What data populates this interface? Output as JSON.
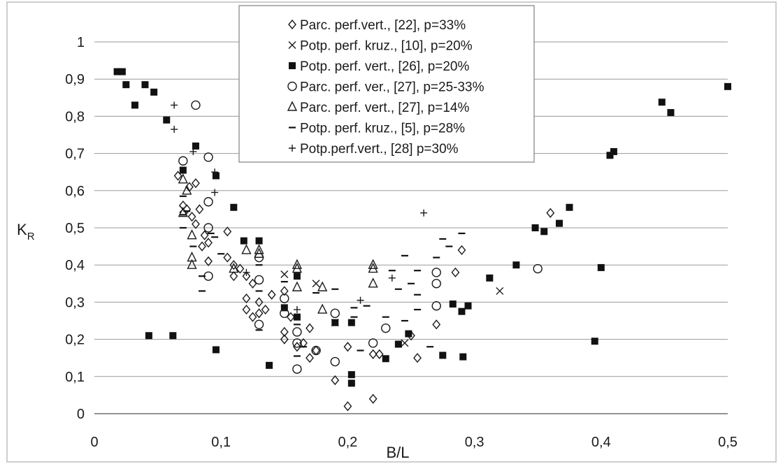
{
  "chart_data": {
    "type": "scatter",
    "title": "",
    "xlabel": "B/L",
    "ylabel": "K",
    "ylabel_subscript": "R",
    "xlim": [
      0,
      0.5
    ],
    "ylim": [
      0,
      1
    ],
    "xticks": [
      0,
      0.1,
      0.2,
      0.3,
      0.4,
      0.5
    ],
    "xtick_labels": [
      "0",
      "0,1",
      "0,2",
      "0,3",
      "0,4",
      "0,5"
    ],
    "yticks": [
      0,
      0.1,
      0.2,
      0.3,
      0.4,
      0.5,
      0.6,
      0.7,
      0.8,
      0.9,
      1
    ],
    "ytick_labels": [
      "0",
      "0,1",
      "0,2",
      "0,3",
      "0,4",
      "0,5",
      "0,6",
      "0,7",
      "0,8",
      "0,9",
      "1"
    ],
    "grid": "horizontal",
    "legend_position": "top-center",
    "series": [
      {
        "name": "Parc. perf.vert., [22], p=33%",
        "marker": "diamond-open",
        "points": [
          [
            0.066,
            0.64
          ],
          [
            0.07,
            0.56
          ],
          [
            0.073,
            0.55
          ],
          [
            0.075,
            0.61
          ],
          [
            0.077,
            0.53
          ],
          [
            0.08,
            0.62
          ],
          [
            0.08,
            0.51
          ],
          [
            0.083,
            0.55
          ],
          [
            0.085,
            0.45
          ],
          [
            0.087,
            0.48
          ],
          [
            0.09,
            0.46
          ],
          [
            0.09,
            0.41
          ],
          [
            0.105,
            0.49
          ],
          [
            0.105,
            0.42
          ],
          [
            0.11,
            0.4
          ],
          [
            0.11,
            0.37
          ],
          [
            0.115,
            0.39
          ],
          [
            0.12,
            0.37
          ],
          [
            0.12,
            0.31
          ],
          [
            0.12,
            0.28
          ],
          [
            0.125,
            0.35
          ],
          [
            0.125,
            0.26
          ],
          [
            0.13,
            0.3
          ],
          [
            0.13,
            0.27
          ],
          [
            0.135,
            0.28
          ],
          [
            0.14,
            0.32
          ],
          [
            0.15,
            0.33
          ],
          [
            0.15,
            0.22
          ],
          [
            0.15,
            0.2
          ],
          [
            0.155,
            0.26
          ],
          [
            0.16,
            0.18
          ],
          [
            0.165,
            0.19
          ],
          [
            0.17,
            0.23
          ],
          [
            0.17,
            0.15
          ],
          [
            0.175,
            0.17
          ],
          [
            0.19,
            0.09
          ],
          [
            0.2,
            0.18
          ],
          [
            0.2,
            0.02
          ],
          [
            0.22,
            0.16
          ],
          [
            0.22,
            0.04
          ],
          [
            0.225,
            0.16
          ],
          [
            0.25,
            0.21
          ],
          [
            0.255,
            0.15
          ],
          [
            0.27,
            0.24
          ],
          [
            0.285,
            0.38
          ],
          [
            0.29,
            0.44
          ],
          [
            0.36,
            0.54
          ]
        ]
      },
      {
        "name": "Potp. perf. kruz., [10], p=20%",
        "marker": "x",
        "points": [
          [
            0.07,
            0.55
          ],
          [
            0.15,
            0.375
          ],
          [
            0.175,
            0.35
          ],
          [
            0.19,
            0.245
          ],
          [
            0.245,
            0.19
          ],
          [
            0.32,
            0.33
          ]
        ]
      },
      {
        "name": "Potp. perf. vert., [26], p=20%",
        "marker": "square-filled",
        "points": [
          [
            0.018,
            0.92
          ],
          [
            0.022,
            0.92
          ],
          [
            0.025,
            0.885
          ],
          [
            0.032,
            0.83
          ],
          [
            0.04,
            0.885
          ],
          [
            0.043,
            0.21
          ],
          [
            0.047,
            0.865
          ],
          [
            0.057,
            0.79
          ],
          [
            0.062,
            0.21
          ],
          [
            0.07,
            0.655
          ],
          [
            0.08,
            0.72
          ],
          [
            0.096,
            0.64
          ],
          [
            0.096,
            0.172
          ],
          [
            0.11,
            0.555
          ],
          [
            0.118,
            0.465
          ],
          [
            0.13,
            0.465
          ],
          [
            0.138,
            0.13
          ],
          [
            0.15,
            0.285
          ],
          [
            0.16,
            0.37
          ],
          [
            0.16,
            0.26
          ],
          [
            0.19,
            0.245
          ],
          [
            0.203,
            0.245
          ],
          [
            0.203,
            0.105
          ],
          [
            0.203,
            0.082
          ],
          [
            0.23,
            0.148
          ],
          [
            0.24,
            0.187
          ],
          [
            0.248,
            0.215
          ],
          [
            0.275,
            0.157
          ],
          [
            0.283,
            0.295
          ],
          [
            0.29,
            0.275
          ],
          [
            0.291,
            0.153
          ],
          [
            0.295,
            0.29
          ],
          [
            0.312,
            0.365
          ],
          [
            0.333,
            0.4
          ],
          [
            0.348,
            0.5
          ],
          [
            0.355,
            0.49
          ],
          [
            0.367,
            0.512
          ],
          [
            0.375,
            0.555
          ],
          [
            0.395,
            0.195
          ],
          [
            0.4,
            0.393
          ],
          [
            0.407,
            0.695
          ],
          [
            0.41,
            0.705
          ],
          [
            0.448,
            0.838
          ],
          [
            0.455,
            0.81
          ],
          [
            0.5,
            0.88
          ]
        ]
      },
      {
        "name": "Parc. perf. ver.,  [27], p=25-33%",
        "marker": "circle-open",
        "points": [
          [
            0.07,
            0.68
          ],
          [
            0.08,
            0.83
          ],
          [
            0.09,
            0.69
          ],
          [
            0.09,
            0.57
          ],
          [
            0.09,
            0.5
          ],
          [
            0.09,
            0.37
          ],
          [
            0.13,
            0.42
          ],
          [
            0.13,
            0.36
          ],
          [
            0.13,
            0.24
          ],
          [
            0.15,
            0.31
          ],
          [
            0.15,
            0.27
          ],
          [
            0.16,
            0.22
          ],
          [
            0.16,
            0.19
          ],
          [
            0.16,
            0.12
          ],
          [
            0.175,
            0.17
          ],
          [
            0.19,
            0.27
          ],
          [
            0.19,
            0.14
          ],
          [
            0.22,
            0.19
          ],
          [
            0.23,
            0.23
          ],
          [
            0.27,
            0.38
          ],
          [
            0.27,
            0.35
          ],
          [
            0.27,
            0.29
          ],
          [
            0.35,
            0.39
          ]
        ]
      },
      {
        "name": "Parc. perf. vert.,  [27], p=14%",
        "marker": "triangle-open",
        "points": [
          [
            0.07,
            0.63
          ],
          [
            0.07,
            0.54
          ],
          [
            0.073,
            0.6
          ],
          [
            0.077,
            0.48
          ],
          [
            0.077,
            0.42
          ],
          [
            0.077,
            0.4
          ],
          [
            0.11,
            0.39
          ],
          [
            0.12,
            0.44
          ],
          [
            0.13,
            0.44
          ],
          [
            0.13,
            0.43
          ],
          [
            0.16,
            0.4
          ],
          [
            0.16,
            0.39
          ],
          [
            0.16,
            0.34
          ],
          [
            0.18,
            0.34
          ],
          [
            0.18,
            0.28
          ],
          [
            0.22,
            0.4
          ],
          [
            0.22,
            0.39
          ],
          [
            0.22,
            0.35
          ]
        ]
      },
      {
        "name": "Potp. perf. kruz.,  [5], p=28%",
        "marker": "dash",
        "points": [
          [
            0.07,
            0.585
          ],
          [
            0.07,
            0.535
          ],
          [
            0.07,
            0.5
          ],
          [
            0.073,
            0.545
          ],
          [
            0.078,
            0.45
          ],
          [
            0.085,
            0.33
          ],
          [
            0.085,
            0.37
          ],
          [
            0.092,
            0.485
          ],
          [
            0.095,
            0.475
          ],
          [
            0.1,
            0.43
          ],
          [
            0.13,
            0.4
          ],
          [
            0.13,
            0.33
          ],
          [
            0.13,
            0.225
          ],
          [
            0.15,
            0.355
          ],
          [
            0.16,
            0.24
          ],
          [
            0.16,
            0.155
          ],
          [
            0.165,
            0.18
          ],
          [
            0.175,
            0.325
          ],
          [
            0.19,
            0.335
          ],
          [
            0.205,
            0.26
          ],
          [
            0.205,
            0.285
          ],
          [
            0.21,
            0.17
          ],
          [
            0.215,
            0.29
          ],
          [
            0.23,
            0.26
          ],
          [
            0.235,
            0.385
          ],
          [
            0.24,
            0.335
          ],
          [
            0.245,
            0.425
          ],
          [
            0.245,
            0.25
          ],
          [
            0.25,
            0.35
          ],
          [
            0.255,
            0.385
          ],
          [
            0.255,
            0.32
          ],
          [
            0.255,
            0.28
          ],
          [
            0.265,
            0.18
          ],
          [
            0.27,
            0.42
          ],
          [
            0.275,
            0.47
          ],
          [
            0.28,
            0.45
          ],
          [
            0.29,
            0.485
          ]
        ]
      },
      {
        "name": "Potp.perf.vert., [28] p=30%",
        "marker": "plus",
        "points": [
          [
            0.063,
            0.83
          ],
          [
            0.063,
            0.765
          ],
          [
            0.078,
            0.705
          ],
          [
            0.095,
            0.65
          ],
          [
            0.095,
            0.595
          ],
          [
            0.12,
            0.38
          ],
          [
            0.16,
            0.28
          ],
          [
            0.21,
            0.305
          ],
          [
            0.235,
            0.365
          ],
          [
            0.26,
            0.54
          ]
        ]
      }
    ]
  }
}
